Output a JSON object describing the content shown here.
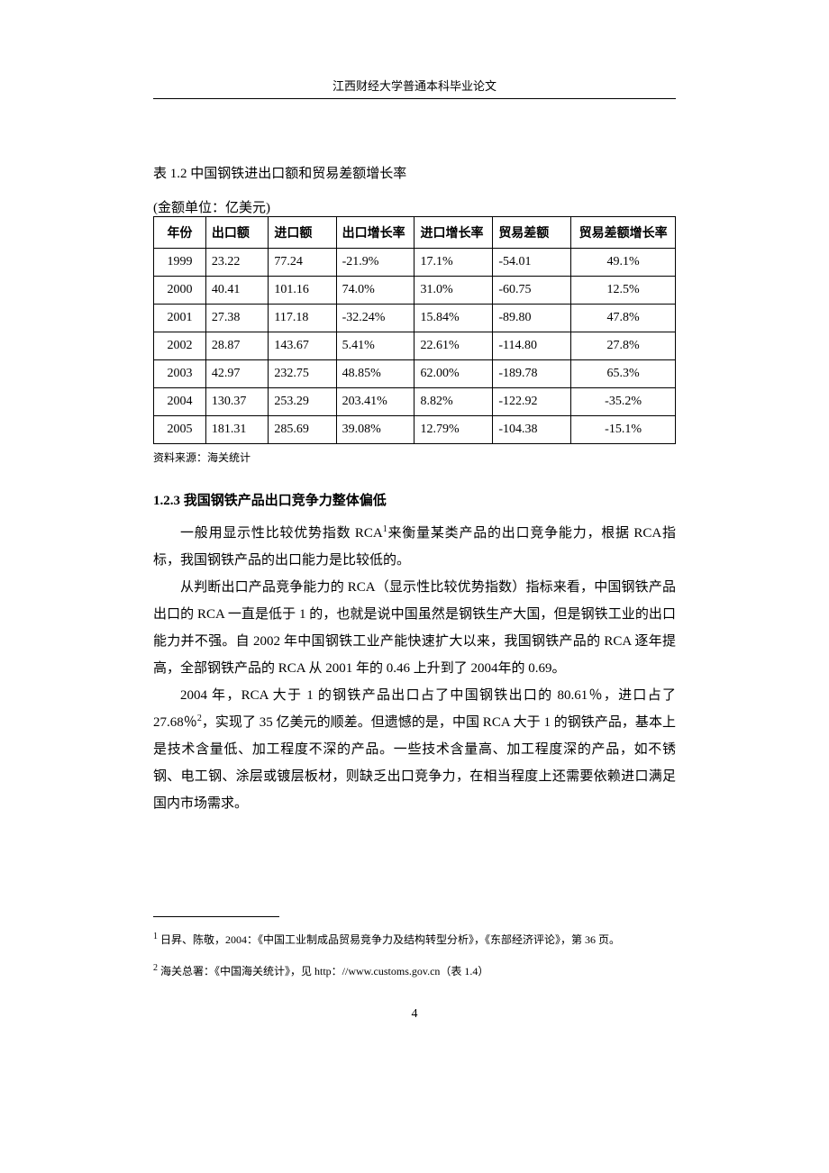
{
  "header": "江西财经大学普通本科毕业论文",
  "table_caption": "表 1.2 中国钢铁进出口额和贸易差额增长率",
  "unit_label": "(金额单位：亿美元)",
  "table": {
    "columns": [
      "年份",
      "出口额",
      "进口额",
      "出口增长率",
      "进口增长率",
      "贸易差额",
      "贸易差额增长率"
    ],
    "rows": [
      [
        "1999",
        "23.22",
        "77.24",
        "-21.9%",
        "17.1%",
        "-54.01",
        "49.1%"
      ],
      [
        "2000",
        "40.41",
        "101.16",
        "74.0%",
        "31.0%",
        "-60.75",
        "12.5%"
      ],
      [
        "2001",
        "27.38",
        "117.18",
        "-32.24%",
        "15.84%",
        "-89.80",
        "47.8%"
      ],
      [
        "2002",
        "28.87",
        "143.67",
        "5.41%",
        "22.61%",
        "-114.80",
        "27.8%"
      ],
      [
        "2003",
        "42.97",
        "232.75",
        "48.85%",
        "62.00%",
        "-189.78",
        "65.3%"
      ],
      [
        "2004",
        "130.37",
        "253.29",
        "203.41%",
        "8.82%",
        "-122.92",
        "-35.2%"
      ],
      [
        "2005",
        "181.31",
        "285.69",
        "39.08%",
        "12.79%",
        "-104.38",
        "-15.1%"
      ]
    ]
  },
  "source": "资料来源：海关统计",
  "section_title": "1.2.3 我国钢铁产品出口竞争力整体偏低",
  "para1_a": "一般用显示性比较优势指数 RCA",
  "para1_sup": "1",
  "para1_b": "来衡量某类产品的出口竞争能力，根据 RCA指标，我国钢铁产品的出口能力是比较低的。",
  "para2": "从判断出口产品竞争能力的 RCA（显示性比较优势指数）指标来看，中国钢铁产品出口的 RCA 一直是低于 1 的，也就是说中国虽然是钢铁生产大国，但是钢铁工业的出口能力并不强。自 2002 年中国钢铁工业产能快速扩大以来，我国钢铁产品的 RCA 逐年提高，全部钢铁产品的 RCA 从 2001 年的 0.46 上升到了 2004年的 0.69。",
  "para3_a": "2004 年，RCA 大于 1 的钢铁产品出口占了中国钢铁出口的 80.61％，进口占了 27.68％",
  "para3_sup": "2",
  "para3_b": "，实现了 35 亿美元的顺差。但遗憾的是，中国 RCA 大于 1 的钢铁产品，基本上是技术含量低、加工程度不深的产品。一些技术含量高、加工程度深的产品，如不锈钢、电工钢、涂层或镀层板材，则缺乏出口竞争力，在相当程度上还需要依赖进口满足国内市场需求。",
  "footnote1_num": "1",
  "footnote1_text": " 日昇、陈敬，2004：《中国工业制成品贸易竞争力及结构转型分析》，《东部经济评论》，第 36 页。",
  "footnote2_num": "2",
  "footnote2_text": " 海关总署：《中国海关统计》，见 http：//www.customs.gov.cn（表 1.4）",
  "page_number": "4"
}
